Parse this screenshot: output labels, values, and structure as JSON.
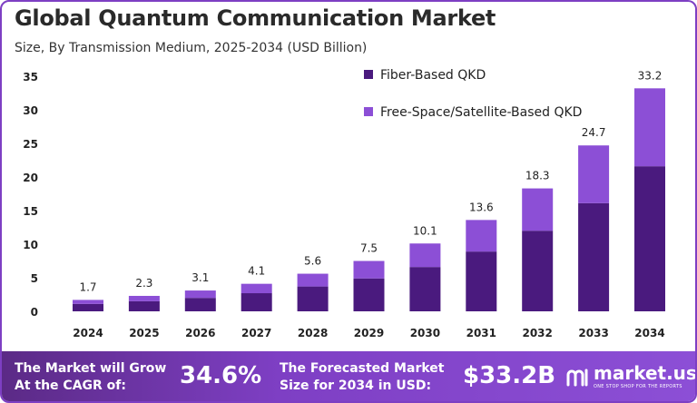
{
  "header": {
    "title": "Global Quantum Communication Market",
    "subtitle": "Size, By Transmission Medium, 2025-2034 (USD Billion)"
  },
  "chart_data": {
    "type": "bar",
    "stacked": true,
    "categories": [
      "2024",
      "2025",
      "2026",
      "2027",
      "2028",
      "2029",
      "2030",
      "2031",
      "2032",
      "2033",
      "2034"
    ],
    "series": [
      {
        "name": "Fiber-Based QKD",
        "color": "#4a1a7e",
        "values": [
          1.1,
          1.5,
          2.0,
          2.7,
          3.7,
          4.9,
          6.6,
          8.9,
          12.0,
          16.1,
          21.6
        ]
      },
      {
        "name": "Free-Space/Satellite-Based QKD",
        "color": "#8c4fd6",
        "values": [
          0.6,
          0.8,
          1.1,
          1.4,
          1.9,
          2.6,
          3.5,
          4.7,
          6.3,
          8.6,
          11.6
        ]
      }
    ],
    "totals": [
      "1.7",
      "2.3",
      "3.1",
      "4.1",
      "5.6",
      "7.5",
      "10.1",
      "13.6",
      "18.3",
      "24.7",
      "33.2"
    ],
    "yticks": [
      "0",
      "5",
      "10",
      "15",
      "20",
      "25",
      "30",
      "35"
    ],
    "ylim": [
      0,
      35
    ],
    "grid": false,
    "legend_position": "top-right"
  },
  "footer": {
    "cagr_label_line1": "The Market will Grow",
    "cagr_label_line2": "At the CAGR of:",
    "cagr_value": "34.6%",
    "forecast_label_line1": "The Forecasted Market",
    "forecast_label_line2": "Size for 2034 in USD:",
    "forecast_value": "$33.2B",
    "brand_name": "market.us",
    "brand_tagline": "ONE STOP SHOP FOR THE REPORTS",
    "brand_icon": "market-us-logo-icon"
  }
}
